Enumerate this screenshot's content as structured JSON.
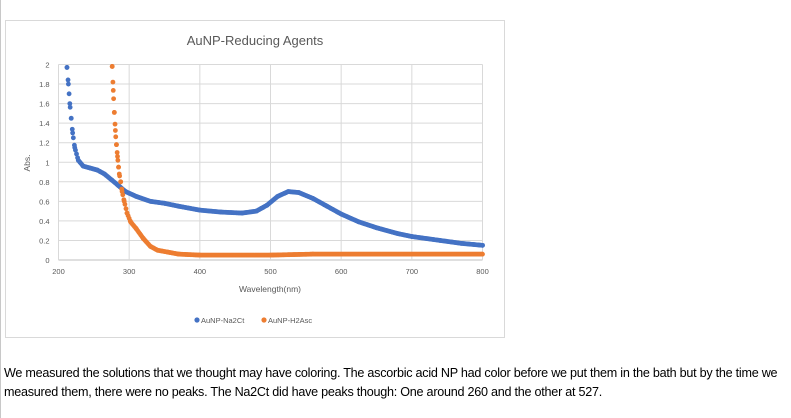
{
  "chart_data": {
    "type": "scatter",
    "title": "AuNP-Reducing Agents",
    "xlabel": "Wavelength(nm)",
    "ylabel": "Abs.",
    "xlim": [
      200,
      800
    ],
    "ylim": [
      0,
      2
    ],
    "xticks": [
      "200",
      "300",
      "400",
      "500",
      "600",
      "700",
      "800"
    ],
    "yticks": [
      "0",
      "0.2",
      "0.4",
      "0.6",
      "0.8",
      "1",
      "1.2",
      "1.4",
      "1.6",
      "1.8",
      "2"
    ],
    "grid": true,
    "legend_position": "bottom",
    "series": [
      {
        "name": "AuNP-Na2Ct",
        "color": "#4472c4",
        "points": [
          [
            212,
            1.97
          ],
          [
            214,
            1.8
          ],
          [
            216,
            1.6
          ],
          [
            218,
            1.45
          ],
          [
            220,
            1.3
          ],
          [
            223,
            1.15
          ],
          [
            228,
            1.02
          ],
          [
            235,
            0.96
          ],
          [
            245,
            0.94
          ],
          [
            255,
            0.92
          ],
          [
            265,
            0.88
          ],
          [
            275,
            0.82
          ],
          [
            285,
            0.76
          ],
          [
            295,
            0.7
          ],
          [
            310,
            0.65
          ],
          [
            330,
            0.6
          ],
          [
            350,
            0.58
          ],
          [
            370,
            0.55
          ],
          [
            400,
            0.51
          ],
          [
            430,
            0.49
          ],
          [
            460,
            0.48
          ],
          [
            480,
            0.5
          ],
          [
            495,
            0.56
          ],
          [
            510,
            0.65
          ],
          [
            525,
            0.7
          ],
          [
            540,
            0.69
          ],
          [
            560,
            0.63
          ],
          [
            580,
            0.55
          ],
          [
            600,
            0.47
          ],
          [
            625,
            0.39
          ],
          [
            650,
            0.33
          ],
          [
            680,
            0.27
          ],
          [
            700,
            0.24
          ],
          [
            740,
            0.2
          ],
          [
            770,
            0.17
          ],
          [
            800,
            0.15
          ]
        ]
      },
      {
        "name": "AuNP-H2Asc",
        "color": "#ed7d31",
        "points": [
          [
            276,
            1.98
          ],
          [
            277,
            1.82
          ],
          [
            278,
            1.65
          ],
          [
            279,
            1.51
          ],
          [
            280,
            1.39
          ],
          [
            281,
            1.26
          ],
          [
            282,
            1.18
          ],
          [
            283,
            1.1
          ],
          [
            284,
            1.02
          ],
          [
            285,
            0.95
          ],
          [
            286,
            0.88
          ],
          [
            288,
            0.8
          ],
          [
            290,
            0.7
          ],
          [
            293,
            0.6
          ],
          [
            297,
            0.48
          ],
          [
            302,
            0.39
          ],
          [
            310,
            0.32
          ],
          [
            320,
            0.22
          ],
          [
            330,
            0.14
          ],
          [
            340,
            0.1
          ],
          [
            355,
            0.08
          ],
          [
            370,
            0.06
          ],
          [
            400,
            0.05
          ],
          [
            500,
            0.05
          ],
          [
            560,
            0.06
          ],
          [
            800,
            0.06
          ]
        ]
      }
    ]
  },
  "caption": "We measured the solutions that we thought may have coloring. The ascorbic acid NP had color before we put them in the bath but by the time we measured them, there were no peaks. The Na2Ct did have peaks though: One around 260 and the other at 527."
}
